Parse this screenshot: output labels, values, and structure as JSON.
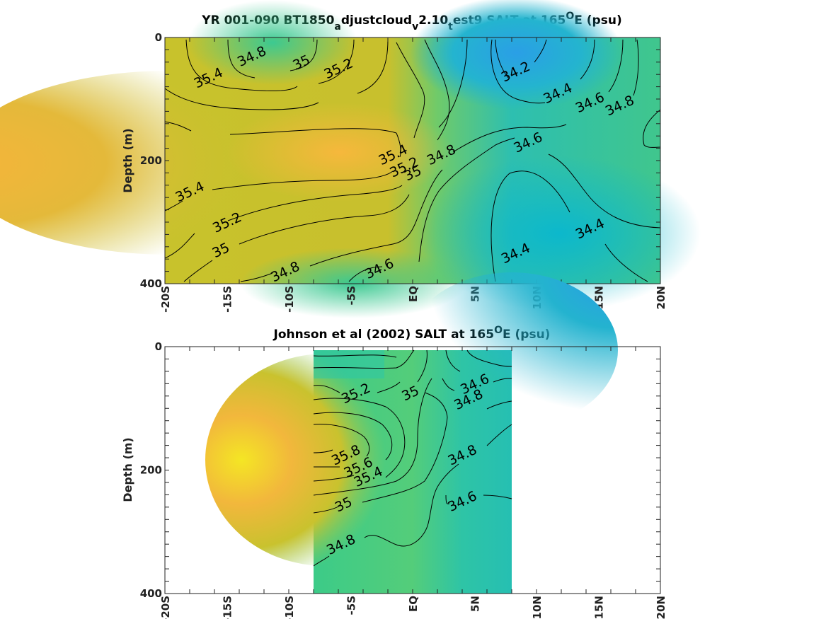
{
  "chart_data": [
    {
      "type": "heatmap",
      "title_main": "YR 001-090 BT1850",
      "title_segments": [
        {
          "text": "YR 001-090 BT1850",
          "sub": false
        },
        {
          "text": "a",
          "sub": true
        },
        {
          "text": "djustcloud",
          "sub": false
        },
        {
          "text": "v",
          "sub": true
        },
        {
          "text": "2.10",
          "sub": false
        },
        {
          "text": "t",
          "sub": true
        },
        {
          "text": "est9 SALT at 165",
          "sub": false
        },
        {
          "text": "O",
          "sup": true
        },
        {
          "text": "E (psu)",
          "sub": false
        }
      ],
      "ylabel": "Depth (m)",
      "xlim": [
        -20,
        20
      ],
      "ylim": [
        0,
        400
      ],
      "y_reversed": true,
      "x_ticks": [
        "-20S",
        "-15S",
        "-10S",
        "-5S",
        "EQ",
        "5N",
        "10N",
        "15N",
        "20N"
      ],
      "y_ticks": [
        "0",
        "200",
        "400"
      ],
      "data_extent_x": [
        -20,
        20
      ],
      "contour_labels": [
        {
          "text": "34.8",
          "lon": -13,
          "depth": 30
        },
        {
          "text": "35",
          "lon": -9,
          "depth": 40
        },
        {
          "text": "35.2",
          "lon": -6,
          "depth": 50
        },
        {
          "text": "35.4",
          "lon": -16.5,
          "depth": 65
        },
        {
          "text": "35.4",
          "lon": -18,
          "depth": 250
        },
        {
          "text": "35.2",
          "lon": -15,
          "depth": 300
        },
        {
          "text": "35",
          "lon": -15.5,
          "depth": 345
        },
        {
          "text": "34.8",
          "lon": -10.3,
          "depth": 380
        },
        {
          "text": "34.6",
          "lon": -2.7,
          "depth": 375
        },
        {
          "text": "35.4",
          "lon": -1.6,
          "depth": 190
        },
        {
          "text": "35.2",
          "lon": -0.7,
          "depth": 210
        },
        {
          "text": "35",
          "lon": 0,
          "depth": 220
        },
        {
          "text": "34.8",
          "lon": 2.3,
          "depth": 190
        },
        {
          "text": "34.2",
          "lon": 8.3,
          "depth": 55
        },
        {
          "text": "34.4",
          "lon": 11.7,
          "depth": 90
        },
        {
          "text": "34.6",
          "lon": 14.3,
          "depth": 105
        },
        {
          "text": "34.8",
          "lon": 16.7,
          "depth": 110
        },
        {
          "text": "34.6",
          "lon": 9.3,
          "depth": 170
        },
        {
          "text": "34.4",
          "lon": 14.3,
          "depth": 310
        },
        {
          "text": "34.4",
          "lon": 8.3,
          "depth": 350
        }
      ]
    },
    {
      "type": "heatmap",
      "title_segments": [
        {
          "text": "Johnson et al (2002) SALT at 165",
          "sub": false
        },
        {
          "text": "O",
          "sup": true
        },
        {
          "text": "E (psu)",
          "sub": false
        }
      ],
      "ylabel": "Depth (m)",
      "xlim": [
        -20,
        20
      ],
      "ylim": [
        0,
        400
      ],
      "y_reversed": true,
      "x_ticks": [
        "-20S",
        "-15S",
        "-10S",
        "-5S",
        "EQ",
        "5N",
        "10N",
        "15N",
        "20N"
      ],
      "y_ticks": [
        "0",
        "200",
        "400"
      ],
      "data_extent_x": [
        -8,
        8
      ],
      "contour_labels": [
        {
          "text": "34.6",
          "lon": 5,
          "depth": 60
        },
        {
          "text": "34.8",
          "lon": 4.5,
          "depth": 85
        },
        {
          "text": "35.2",
          "lon": -4.6,
          "depth": 75
        },
        {
          "text": "35",
          "lon": -0.2,
          "depth": 75
        },
        {
          "text": "35.8",
          "lon": -5.4,
          "depth": 175
        },
        {
          "text": "35.6",
          "lon": -4.4,
          "depth": 195
        },
        {
          "text": "35.4",
          "lon": -3.6,
          "depth": 210
        },
        {
          "text": "34.8",
          "lon": 4,
          "depth": 175
        },
        {
          "text": "34.6",
          "lon": 4,
          "depth": 250
        },
        {
          "text": "35",
          "lon": -5.6,
          "depth": 255
        },
        {
          "text": "34.8",
          "lon": -5.8,
          "depth": 320
        }
      ]
    }
  ]
}
